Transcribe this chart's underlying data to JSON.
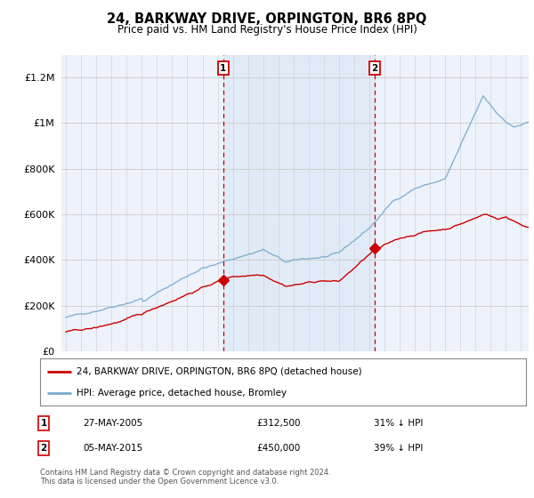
{
  "title": "24, BARKWAY DRIVE, ORPINGTON, BR6 8PQ",
  "subtitle": "Price paid vs. HM Land Registry's House Price Index (HPI)",
  "legend_line1": "24, BARKWAY DRIVE, ORPINGTON, BR6 8PQ (detached house)",
  "legend_line2": "HPI: Average price, detached house, Bromley",
  "footnote": "Contains HM Land Registry data © Crown copyright and database right 2024.\nThis data is licensed under the Open Government Licence v3.0.",
  "annotation1_date": "27-MAY-2005",
  "annotation1_price": "£312,500",
  "annotation1_pct": "31% ↓ HPI",
  "annotation2_date": "05-MAY-2015",
  "annotation2_price": "£450,000",
  "annotation2_pct": "39% ↓ HPI",
  "sale1_year": 2005.37,
  "sale1_price": 312500,
  "sale2_year": 2015.35,
  "sale2_price": 450000,
  "red_color": "#cc0000",
  "blue_color": "#7aabcc",
  "blue_fill": "#ddeeff",
  "vline_color": "#cc0000",
  "background_color": "#eef2fa",
  "grid_color": "#cccccc",
  "ylim_max": 1300000,
  "xlim_start": 1994.7,
  "xlim_end": 2025.5
}
